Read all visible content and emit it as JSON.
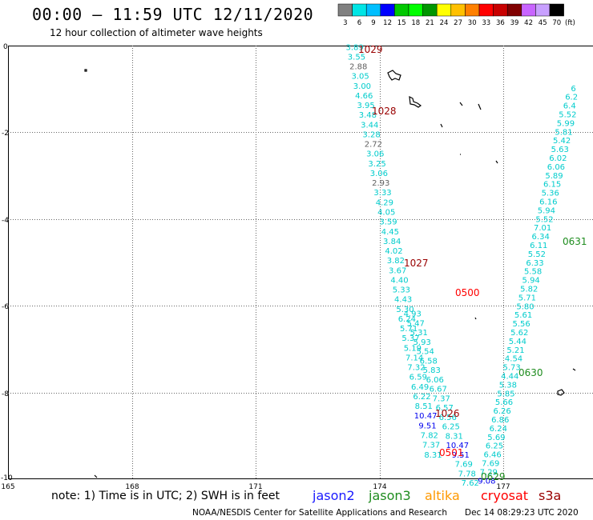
{
  "header": {
    "title": "00:00 – 11:59 UTC 12/11/2020",
    "subtitle": "12 hour collection of altimeter wave heights"
  },
  "colorbar": {
    "labels": [
      "3",
      "6",
      "9",
      "12",
      "15",
      "18",
      "21",
      "24",
      "27",
      "30",
      "33",
      "36",
      "39",
      "42",
      "45",
      "70"
    ],
    "unit": "(ft)",
    "colors": [
      "#808080",
      "#00e5e5",
      "#00bfff",
      "#0000ff",
      "#00c800",
      "#00ff00",
      "#009600",
      "#ffff00",
      "#ffc000",
      "#ff8000",
      "#ff0000",
      "#c80000",
      "#800000",
      "#c864ff",
      "#c8a0ff",
      "#000000"
    ]
  },
  "axes": {
    "y_labels": [
      "0",
      "-2",
      "-4",
      "-6",
      "-8",
      "-10"
    ],
    "x_labels": [
      "165",
      "168",
      "171",
      "174",
      "177"
    ]
  },
  "footer": {
    "note": "note: 1) Time is in UTC; 2) SWH is in feet",
    "satellites": [
      {
        "name": "jason2",
        "color": "#1a1aff"
      },
      {
        "name": "jason3",
        "color": "#1e8c1e"
      },
      {
        "name": "altika",
        "color": "#ff9900"
      },
      {
        "name": "cryosat",
        "color": "#ff0000"
      },
      {
        "name": "s3a",
        "color": "#990000"
      }
    ],
    "credit": "NOAA/NESDIS Center for Satellite Applications and Research",
    "timestamp": "Dec 14 08:29:23 UTC 2020"
  },
  "time_labels": [
    {
      "text": "1029",
      "color": "#990000"
    },
    {
      "text": "1028",
      "color": "#990000"
    },
    {
      "text": "1027",
      "color": "#990000"
    },
    {
      "text": "0500",
      "color": "#ff0000"
    },
    {
      "text": "1026",
      "color": "#990000"
    },
    {
      "text": "0501",
      "color": "#ff0000"
    },
    {
      "text": "0629",
      "color": "#1e8c1e"
    },
    {
      "text": "0630",
      "color": "#1e8c1e"
    },
    {
      "text": "0631",
      "color": "#1e8c1e"
    }
  ],
  "tracks": {
    "west_s3a": {
      "start": {
        "lon": 173.4,
        "lat": 0.05
      },
      "end": {
        "lon": 175.3,
        "lat": -9.35
      },
      "values": [
        "3.89",
        "3.55",
        "2.88",
        "3.05",
        "3.00",
        "4.66",
        "3.95",
        "3.48",
        "3.44",
        "3.28",
        "2.72",
        "3.06",
        "3.25",
        "3.06",
        "2.93",
        "3.33",
        "4.29",
        "4.05",
        "3.59",
        "4.45",
        "3.84",
        "4.02",
        "3.82",
        "3.67",
        "4.40",
        "5.33",
        "4.43",
        "5.30",
        "6.24",
        "5.71",
        "5.37",
        "5.19",
        "7.14",
        "7.32",
        "6.59",
        "6.49",
        "6.22",
        "8.51",
        "10.47",
        "9.51",
        "7.82",
        "7.37",
        "8.31"
      ]
    },
    "west_cryosat": {
      "start": {
        "lon": 174.8,
        "lat": -6.1
      },
      "end": {
        "lon": 176.2,
        "lat": -10.0
      },
      "values": [
        "4.93",
        "5.47",
        "5.31",
        "5.93",
        "5.54",
        "6.58",
        "5.83",
        "6.06",
        "6.67",
        "7.37",
        "6.57",
        "6.56",
        "6.25",
        "8.31",
        "10.47",
        "9.51",
        "7.69",
        "7.78",
        "7.62"
      ]
    },
    "east_jason3": {
      "start": {
        "lon": 176.6,
        "lat": -9.95
      },
      "end": {
        "lon": 178.7,
        "lat": -0.9
      },
      "values": [
        "9.08",
        "7.29",
        "7.69",
        "6.46",
        "6.25",
        "5.69",
        "6.24",
        "6.86",
        "6.26",
        "5.66",
        "5.85",
        "5.38",
        "4.44",
        "5.73",
        "4.54",
        "5.21",
        "5.44",
        "5.62",
        "5.56",
        "5.61",
        "5.80",
        "5.71",
        "5.82",
        "5.94",
        "5.58",
        "6.33",
        "5.52",
        "6.11",
        "6.34",
        "7.01",
        "5.52",
        "5.94",
        "6.16",
        "5.36",
        "6.15",
        "5.89",
        "6.06",
        "6.02",
        "5.63",
        "5.42",
        "5.81",
        "5.99",
        "5.52",
        "6.4",
        "6.2",
        "6"
      ]
    }
  }
}
